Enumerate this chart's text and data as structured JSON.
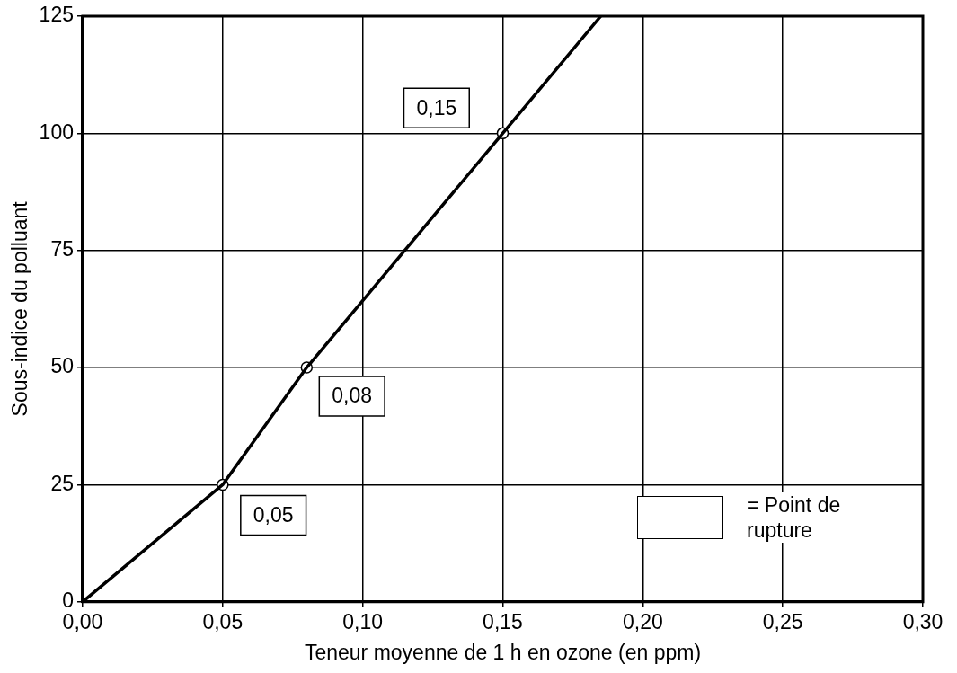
{
  "chart_data": {
    "type": "line",
    "xlabel": "Teneur moyenne de 1 h en ozone (en ppm)",
    "ylabel": "Sous-indice du polluant",
    "xlim": [
      0,
      0.3
    ],
    "ylim": [
      0,
      125
    ],
    "xticks": [
      {
        "value": 0,
        "label": "0,00"
      },
      {
        "value": 0.05,
        "label": "0,05"
      },
      {
        "value": 0.1,
        "label": "0,10"
      },
      {
        "value": 0.15,
        "label": "0,15"
      },
      {
        "value": 0.2,
        "label": "0,20"
      },
      {
        "value": 0.25,
        "label": "0,25"
      },
      {
        "value": 0.3,
        "label": "0,30"
      }
    ],
    "yticks": [
      0,
      25,
      50,
      75,
      100,
      125
    ],
    "grid": true,
    "legend": "bottom right",
    "line_style": "solid",
    "series": [
      {
        "color": "#000000",
        "marker": "none",
        "x": [
          0,
          0.05,
          0.08,
          0.15,
          0.185
        ],
        "values": [
          0,
          25,
          50,
          100,
          125
        ]
      },
      {
        "type": "scatter",
        "name": "= Point de rupture",
        "color": "#ffffff",
        "marker": "circle",
        "x": [
          0.05,
          0.08,
          0.15
        ],
        "values": [
          25,
          50,
          100
        ]
      }
    ],
    "annotations": [
      {
        "text": "0,05",
        "x": 0.05,
        "y": 25
      },
      {
        "text": "0,08",
        "x": 0.08,
        "y": 50
      },
      {
        "text": "0,15",
        "x": 0.15,
        "y": 100
      }
    ]
  }
}
